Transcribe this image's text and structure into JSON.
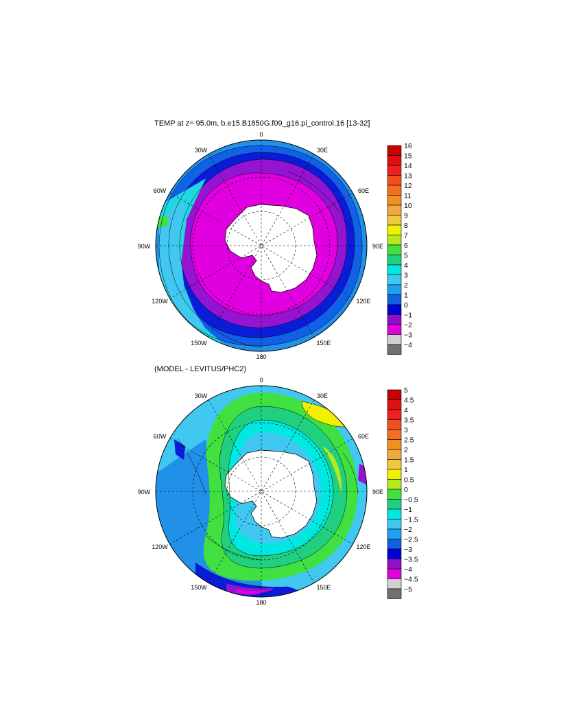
{
  "panels": [
    {
      "id": "temp",
      "title": "TEMP at z=  95.0m, b.e15.B1850G.f09_g16.pi_control.16 [13-32]",
      "longitude_labels": {
        "top": "0",
        "upper_left": "30W",
        "upper_right": "30E",
        "left_upper": "60W",
        "right_upper": "60E",
        "left": "90W",
        "right": "90E",
        "left_lower": "120W",
        "right_lower": "120E",
        "lower_left": "150W",
        "lower_right": "150E",
        "bottom": "180"
      },
      "colorbar": {
        "labels": [
          "16",
          "15",
          "14",
          "13",
          "12",
          "11",
          "10",
          "9",
          "8",
          "7",
          "6",
          "5",
          "4",
          "3",
          "2",
          "1",
          "0",
          "−1",
          "−2",
          "−3",
          "−4"
        ],
        "colors": [
          "#c80000",
          "#e01010",
          "#f02020",
          "#f05020",
          "#f07020",
          "#f09020",
          "#f0a840",
          "#f0c840",
          "#f0f000",
          "#b8e820",
          "#40e040",
          "#20d080",
          "#00e8e0",
          "#40c8f0",
          "#20a0f0",
          "#1060e0",
          "#0000d8",
          "#9010c8",
          "#e000e0",
          "#d0d0d0",
          "#707070"
        ]
      },
      "fields": {
        "outer": "#2090e8",
        "ring1": "#1060e8",
        "ring2": "#0a1cd8",
        "ring3": "#9414d2",
        "inner": "#e000e0",
        "warm_sector": "#20d8e0",
        "warm_sector2": "#40c8f0",
        "patch": "#40e040"
      }
    },
    {
      "id": "diff",
      "title": "(MODEL - LEVITUS/PHC2)",
      "longitude_labels": {
        "top": "0",
        "upper_left": "30W",
        "upper_right": "30E",
        "left_upper": "60W",
        "right_upper": "60E",
        "left": "90W",
        "right": "90E",
        "left_lower": "120W",
        "right_lower": "120E",
        "lower_left": "150W",
        "lower_right": "150E",
        "bottom": "180"
      },
      "colorbar": {
        "labels": [
          "5",
          "4.5",
          "4",
          "3.5",
          "3",
          "2.5",
          "2",
          "1.5",
          "1",
          "0.5",
          "0",
          "−0.5",
          "−1",
          "−1.5",
          "−2",
          "−2.5",
          "−3",
          "−3.5",
          "−4",
          "−4.5",
          "−5"
        ],
        "colors": [
          "#c80000",
          "#e01010",
          "#f02020",
          "#f05020",
          "#f07020",
          "#f09020",
          "#f0a840",
          "#f0c840",
          "#f0f000",
          "#b8e820",
          "#40e040",
          "#20d080",
          "#00e8e0",
          "#40c8f0",
          "#20a0f0",
          "#1060e0",
          "#0000d8",
          "#9010c8",
          "#e000e0",
          "#d0d0d0",
          "#707070"
        ]
      },
      "fields": {
        "outer": "#40c8f0",
        "ring1": "#00e8e0",
        "ring2": "#40e040",
        "band_green": "#20d080",
        "blue_sector": "#2090e8",
        "deep_blue": "#0a1cd8",
        "purple": "#9414d2",
        "magenta": "#e000e0",
        "yellow": "#f0f000",
        "lightgreen": "#b8e820"
      }
    }
  ]
}
